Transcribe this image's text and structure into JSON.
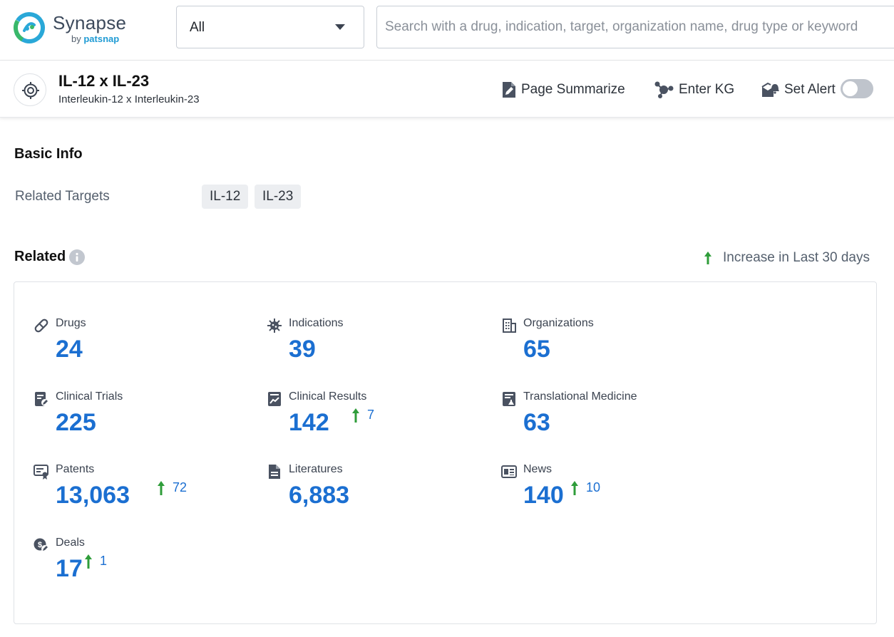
{
  "brand": {
    "name": "Synapse",
    "by": "by",
    "company": "patsnap"
  },
  "search": {
    "scope_value": "All",
    "placeholder": "Search with a drug, indication, target, organization name, drug type or keyword"
  },
  "entity": {
    "title": "IL-12 x IL-23",
    "subtitle": "Interleukin-12 x Interleukin-23"
  },
  "actions": {
    "summarize": "Page Summarize",
    "kg": "Enter KG",
    "alert": "Set Alert",
    "alert_enabled": false
  },
  "basic_info": {
    "title": "Basic Info",
    "related_targets_label": "Related Targets",
    "targets": [
      "IL-12",
      "IL-23"
    ]
  },
  "related": {
    "title": "Related",
    "legend": "Increase in Last 30 days",
    "stats": [
      {
        "icon": "pill-icon",
        "label": "Drugs",
        "value": "24",
        "increase": ""
      },
      {
        "icon": "virus-icon",
        "label": "Indications",
        "value": "39",
        "increase": ""
      },
      {
        "icon": "building-icon",
        "label": "Organizations",
        "value": "65",
        "increase": ""
      },
      {
        "icon": "clipboard-pen-icon",
        "label": "Clinical Trials",
        "value": "225",
        "increase": ""
      },
      {
        "icon": "chart-report-icon",
        "label": "Clinical Results",
        "value": "142",
        "increase": "7"
      },
      {
        "icon": "flask-report-icon",
        "label": "Translational Medicine",
        "value": "63",
        "increase": ""
      },
      {
        "icon": "certificate-icon",
        "label": "Patents",
        "value": "13,063",
        "increase": "72"
      },
      {
        "icon": "document-icon",
        "label": "Literatures",
        "value": "6,883",
        "increase": ""
      },
      {
        "icon": "newspaper-icon",
        "label": "News",
        "value": "140",
        "increase": "10"
      },
      {
        "icon": "deal-icon",
        "label": "Deals",
        "value": "17",
        "increase": "1"
      }
    ]
  },
  "colors": {
    "accent": "#1b6fd1",
    "increase": "#2f9d3a",
    "icon": "#4a5261"
  }
}
